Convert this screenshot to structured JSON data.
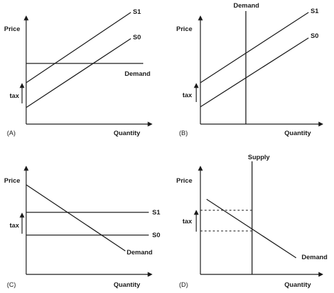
{
  "panels": [
    {
      "id": "A",
      "tag": "(A)",
      "y_axis": "Price",
      "x_axis": "Quantity",
      "tax_label": "tax",
      "curves": {
        "s1": "S1",
        "s0": "S0",
        "demand": "Demand"
      }
    },
    {
      "id": "B",
      "tag": "(B)",
      "y_axis": "Price",
      "x_axis": "Quantity",
      "tax_label": "tax",
      "curves": {
        "s1": "S1",
        "s0": "S0",
        "demand": "Demand"
      }
    },
    {
      "id": "C",
      "tag": "(C)",
      "y_axis": "Price",
      "x_axis": "Quantity",
      "tax_label": "tax",
      "curves": {
        "s1": "S1",
        "s0": "S0",
        "demand": "Demand"
      }
    },
    {
      "id": "D",
      "tag": "(D)",
      "y_axis": "Price",
      "x_axis": "Quantity",
      "tax_label": "tax",
      "curves": {
        "supply": "Supply",
        "demand": "Demand"
      }
    }
  ]
}
